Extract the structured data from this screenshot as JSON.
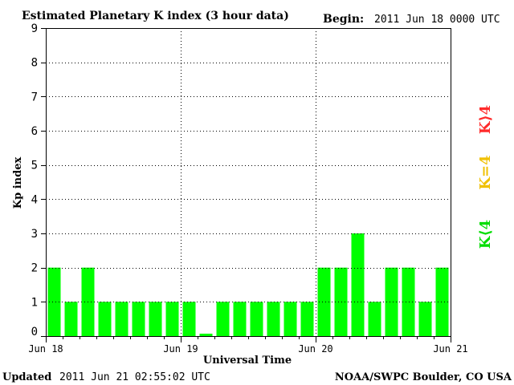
{
  "header": {
    "title": "Estimated Planetary K index (3 hour data)",
    "begin_label": "Begin:",
    "begin_value": "2011 Jun 18 0000 UTC"
  },
  "footer": {
    "updated_label": "Updated",
    "updated_value": "2011 Jun 21 02:55:02 UTC",
    "source": "NOAA/SWPC Boulder, CO USA"
  },
  "legend": {
    "k_lt_4": "K⟨4",
    "k_eq_4": "K=4",
    "k_gt_4": "K⟩4"
  },
  "colors": {
    "bar_green": "#00ff00",
    "legend_green": "#00dd00",
    "legend_yellow": "#f0c000",
    "legend_red": "#ff2a2a",
    "axis": "#000000",
    "grid": "#000000"
  },
  "chart_data": {
    "type": "bar",
    "title": "Estimated Planetary K index (3 hour data)",
    "xlabel": "Universal Time",
    "ylabel": "Kp index",
    "ylim": [
      0,
      9
    ],
    "yticks": [
      "0",
      "1",
      "2",
      "3",
      "4",
      "5",
      "6",
      "7",
      "8",
      "9"
    ],
    "xtick_labels": [
      "Jun 18",
      "Jun 19",
      "Jun 20",
      "Jun 21"
    ],
    "grid": true,
    "values": [
      2,
      1,
      2,
      1,
      1,
      1,
      1,
      1,
      1,
      0.07,
      1,
      1,
      1,
      1,
      1,
      1,
      2,
      2,
      3,
      1,
      2,
      2,
      1,
      2
    ]
  }
}
